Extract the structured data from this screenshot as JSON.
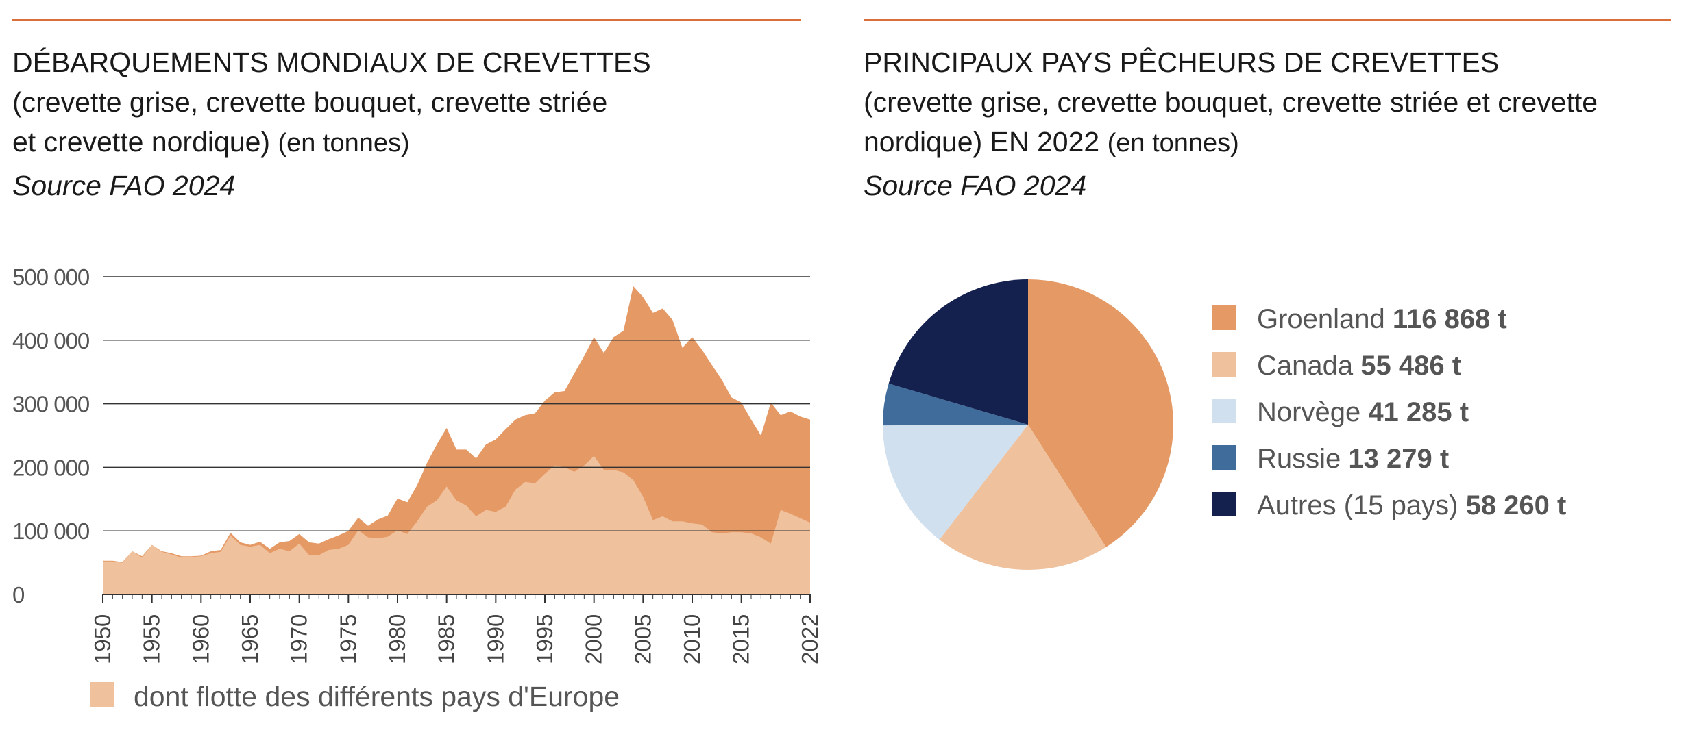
{
  "colors": {
    "accent_rule": "#d9703c",
    "total": "#e59965",
    "europe": "#efc19d",
    "groenland": "#e59965",
    "canada": "#efc19d",
    "norvege": "#d1e0ef",
    "russie": "#406c9b",
    "autres": "#14204e"
  },
  "left": {
    "title_line1": "DÉBARQUEMENTS MONDIAUX DE CREVETTES",
    "title_line2": "(crevette grise, crevette bouquet, crevette striée",
    "title_line3_main": "et crevette nordique)",
    "title_line3_unit": "(en tonnes)",
    "source": "Source FAO 2024",
    "legend_label": "dont flotte des différents pays d'Europe"
  },
  "right": {
    "title_line1": "PRINCIPAUX PAYS PÊCHEURS DE CREVETTES",
    "title_line2": "(crevette grise, crevette bouquet, crevette striée et crevette",
    "title_line3_main": "nordique) EN 2022",
    "title_line3_unit": "(en tonnes)",
    "source": "Source FAO 2024"
  },
  "chart_data": [
    {
      "type": "area",
      "title": "DÉBARQUEMENTS MONDIAUX DE CREVETTES (crevette grise, crevette bouquet, crevette striée et crevette nordique) (en tonnes)",
      "ylim": [
        0,
        500000
      ],
      "yticks": [
        0,
        100000,
        200000,
        300000,
        400000,
        500000
      ],
      "ytick_labels": [
        "0",
        "100 000",
        "200 000",
        "300 000",
        "400 000",
        "500 000"
      ],
      "xticks": [
        1950,
        1955,
        1960,
        1965,
        1970,
        1975,
        1980,
        1985,
        1990,
        1995,
        2000,
        2005,
        2010,
        2015,
        2022
      ],
      "xlim": [
        1950,
        2022
      ],
      "grid": true,
      "x": [
        1950,
        1951,
        1952,
        1953,
        1954,
        1955,
        1956,
        1957,
        1958,
        1959,
        1960,
        1961,
        1962,
        1963,
        1964,
        1965,
        1966,
        1967,
        1968,
        1969,
        1970,
        1971,
        1972,
        1973,
        1974,
        1975,
        1976,
        1977,
        1978,
        1979,
        1980,
        1981,
        1982,
        1983,
        1984,
        1985,
        1986,
        1987,
        1988,
        1989,
        1990,
        1991,
        1992,
        1993,
        1994,
        1995,
        1996,
        1997,
        1998,
        1999,
        2000,
        2001,
        2002,
        2003,
        2004,
        2005,
        2006,
        2007,
        2008,
        2009,
        2010,
        2011,
        2012,
        2013,
        2014,
        2015,
        2016,
        2017,
        2018,
        2019,
        2020,
        2021,
        2022
      ],
      "series": [
        {
          "values": [
            53000,
            53000,
            51000,
            68000,
            60000,
            78000,
            68000,
            65000,
            60000,
            60000,
            61000,
            68000,
            70000,
            97000,
            82000,
            78000,
            83000,
            72000,
            82000,
            84000,
            95000,
            82000,
            80000,
            87000,
            93000,
            100000,
            121000,
            108000,
            118000,
            124000,
            151000,
            145000,
            172000,
            207000,
            236000,
            262000,
            228000,
            228000,
            214000,
            236000,
            244000,
            260000,
            275000,
            282000,
            285000,
            305000,
            318000,
            320000,
            348000,
            375000,
            405000,
            380000,
            405000,
            415000,
            485000,
            468000,
            443000,
            450000,
            432000,
            388000,
            405000,
            385000,
            361000,
            338000,
            310000,
            302000,
            275000,
            250000,
            302000,
            282000,
            288000,
            280000,
            275000
          ]
        },
        {
          "name": "dont flotte des différents pays d'Europe",
          "values": [
            52000,
            52000,
            50000,
            68000,
            58000,
            78000,
            67000,
            63000,
            58000,
            59000,
            60000,
            65000,
            67000,
            93000,
            78000,
            75000,
            78000,
            65000,
            72000,
            68000,
            80000,
            62000,
            62000,
            70000,
            72000,
            78000,
            101000,
            90000,
            88000,
            91000,
            101000,
            95000,
            115000,
            138000,
            148000,
            170000,
            148000,
            140000,
            123000,
            133000,
            130000,
            138000,
            165000,
            177000,
            175000,
            190000,
            203000,
            200000,
            193000,
            203000,
            218000,
            196000,
            196000,
            192000,
            180000,
            154000,
            117000,
            123000,
            115000,
            115000,
            112000,
            110000,
            98000,
            96000,
            98000,
            98000,
            96000,
            90000,
            80000,
            133000,
            127000,
            120000,
            113000
          ]
        }
      ]
    },
    {
      "type": "pie",
      "title": "PRINCIPAUX PAYS PÊCHEURS DE CREVETTES (crevette grise, crevette bouquet, crevette striée et crevette nordique) EN 2022 (en tonnes)",
      "categories": [
        "Groenland",
        "Canada",
        "Norvège",
        "Russie",
        "Autres (15 pays)"
      ],
      "values": [
        116868,
        55486,
        41285,
        13279,
        58260
      ],
      "value_labels": [
        "116 868 t",
        "55 486 t",
        "41 285 t",
        "13 279 t",
        "58 260 t"
      ],
      "legend_position": "right"
    }
  ]
}
